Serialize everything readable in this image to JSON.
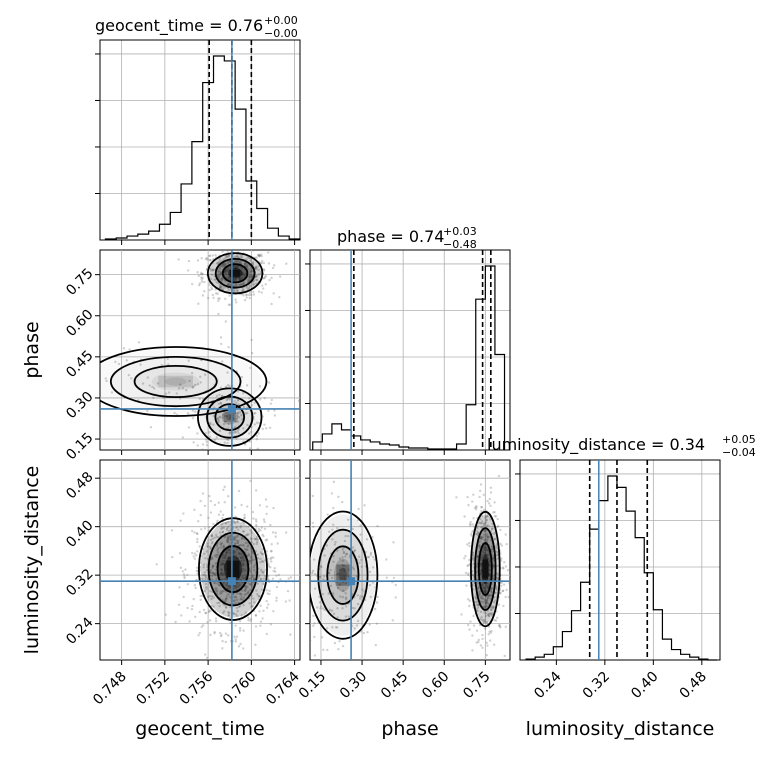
{
  "colors": {
    "truth": "#4682b4",
    "line": "#000000",
    "grid": "#b0b0b0",
    "scatter": "#7a7a7a"
  },
  "titles": {
    "geocent_time": {
      "label": "geocent_time",
      "value": "0.76",
      "plus": "+0.00",
      "minus": "−0.00"
    },
    "phase": {
      "label": "phase",
      "value": "0.74",
      "plus": "+0.03",
      "minus": "−0.48"
    },
    "luminosity_distance": {
      "label": "luminosity_distance",
      "value": "0.34",
      "plus": "+0.05",
      "minus": "−0.04"
    }
  },
  "chart_data": {
    "type": "corner",
    "parameters": [
      "geocent_time",
      "phase",
      "luminosity_distance"
    ],
    "axes": {
      "geocent_time": {
        "xlabel": "geocent_time",
        "range": [
          0.746,
          0.7645
        ],
        "ticks": [
          "0.748",
          "0.752",
          "0.756",
          "0.760",
          "0.764"
        ],
        "tick_values": [
          0.748,
          0.752,
          0.756,
          0.76,
          0.764
        ]
      },
      "phase": {
        "xlabel": "phase",
        "ylabel": "phase",
        "range": [
          0.11,
          0.84
        ],
        "ticks": [
          "0.15",
          "0.30",
          "0.45",
          "0.60",
          "0.75"
        ],
        "tick_values": [
          0.15,
          0.3,
          0.45,
          0.6,
          0.75
        ]
      },
      "luminosity_distance": {
        "xlabel": "luminosity_distance",
        "ylabel": "luminosity_distance",
        "range": [
          0.18,
          0.51
        ],
        "ticks": [
          "0.24",
          "0.32",
          "0.40",
          "0.48"
        ],
        "tick_values": [
          0.24,
          0.32,
          0.4,
          0.48
        ]
      }
    },
    "truth": {
      "geocent_time": 0.7582,
      "phase": 0.26,
      "luminosity_distance": 0.31
    },
    "quantiles": {
      "geocent_time": [
        0.7561,
        0.7582,
        0.76
      ],
      "phase": [
        0.27,
        0.74,
        0.77
      ],
      "luminosity_distance": [
        0.295,
        0.34,
        0.39
      ]
    },
    "histograms": {
      "geocent_time": {
        "edges": [
          0.7465,
          0.7475,
          0.7485,
          0.7495,
          0.7505,
          0.7515,
          0.7525,
          0.7535,
          0.7545,
          0.7555,
          0.7565,
          0.7575,
          0.7585,
          0.7595,
          0.7605,
          0.7615,
          0.7625,
          0.7635,
          0.7645
        ],
        "counts": [
          1,
          2,
          4,
          6,
          9,
          16,
          28,
          57,
          100,
          160,
          187,
          182,
          133,
          60,
          32,
          12,
          4,
          1
        ]
      },
      "phase": {
        "edges": [
          0.12,
          0.155,
          0.19,
          0.225,
          0.26,
          0.295,
          0.33,
          0.365,
          0.4,
          0.435,
          0.47,
          0.505,
          0.54,
          0.575,
          0.61,
          0.645,
          0.68,
          0.715,
          0.75,
          0.785,
          0.82
        ],
        "counts": [
          8,
          16,
          26,
          20,
          14,
          10,
          8,
          6,
          5,
          3,
          2,
          2,
          1,
          1,
          1,
          6,
          45,
          150,
          183,
          95
        ]
      },
      "luminosity_distance": {
        "edges": [
          0.19,
          0.205,
          0.22,
          0.235,
          0.25,
          0.265,
          0.28,
          0.295,
          0.31,
          0.325,
          0.34,
          0.355,
          0.37,
          0.385,
          0.4,
          0.415,
          0.43,
          0.445,
          0.46,
          0.475,
          0.49,
          0.505
        ],
        "counts": [
          1,
          3,
          6,
          14,
          30,
          52,
          82,
          138,
          168,
          194,
          182,
          157,
          129,
          92,
          53,
          22,
          11,
          6,
          3,
          1,
          0
        ]
      }
    },
    "density_modes": [
      {
        "x": "geocent_time",
        "y": "phase",
        "points": [
          [
            0.7585,
            0.755,
            0.0012,
            0.035,
            1.0
          ],
          [
            0.758,
            0.23,
            0.0014,
            0.05,
            0.3
          ],
          [
            0.753,
            0.36,
            0.004,
            0.06,
            0.12
          ]
        ]
      },
      {
        "x": "geocent_time",
        "y": "luminosity_distance",
        "points": [
          [
            0.7583,
            0.33,
            0.0015,
            0.04,
            1.0
          ]
        ]
      },
      {
        "x": "phase",
        "y": "luminosity_distance",
        "points": [
          [
            0.75,
            0.33,
            0.025,
            0.045,
            1.0
          ],
          [
            0.23,
            0.32,
            0.06,
            0.05,
            0.35
          ]
        ]
      }
    ]
  }
}
